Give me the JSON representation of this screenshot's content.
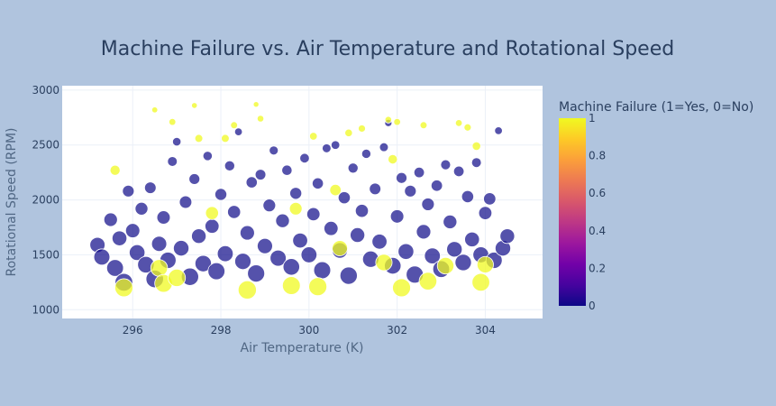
{
  "chart_data": {
    "type": "scatter",
    "title": "Machine Failure vs. Air Temperature and Rotational Speed",
    "xlabel": "Air Temperature (K)",
    "ylabel": "Rotational Speed (RPM)",
    "xlim": [
      294.4,
      305.3
    ],
    "ylim": [
      920,
      3040
    ],
    "x_ticks": [
      296,
      298,
      300,
      302,
      304
    ],
    "x_tick_labels": [
      "296",
      "298",
      "300",
      "302",
      "304"
    ],
    "y_ticks": [
      1000,
      1500,
      2000,
      2500,
      3000
    ],
    "y_tick_labels": [
      "1000",
      "1500",
      "2000",
      "2500",
      "3000"
    ],
    "grid": true,
    "colorbar": {
      "title": "Machine Failure (1=Yes, 0=No)",
      "ticks": [
        0,
        0.2,
        0.4,
        0.6,
        0.8,
        1
      ],
      "tick_labels": [
        "0",
        "0.2",
        "0.4",
        "0.6",
        "0.8",
        "1"
      ],
      "colorscale": [
        "#0d0887",
        "#46039f",
        "#7201a8",
        "#9c179e",
        "#bd3786",
        "#d8576b",
        "#ed7953",
        "#fb9f3a",
        "#fdca26",
        "#f0f921"
      ]
    },
    "series": [
      {
        "values_note": "color=failure",
        "points": [
          [
            295.2,
            1590,
            0
          ],
          [
            295.3,
            1480,
            0
          ],
          [
            295.5,
            1820,
            0
          ],
          [
            295.6,
            1380,
            0
          ],
          [
            295.7,
            1650,
            0
          ],
          [
            295.8,
            1250,
            0
          ],
          [
            295.9,
            2080,
            0
          ],
          [
            296.0,
            1720,
            0
          ],
          [
            296.1,
            1520,
            0
          ],
          [
            296.2,
            1920,
            0
          ],
          [
            296.3,
            1410,
            0
          ],
          [
            296.4,
            2110,
            0
          ],
          [
            296.5,
            1280,
            0
          ],
          [
            296.6,
            1600,
            0
          ],
          [
            296.7,
            1840,
            0
          ],
          [
            296.8,
            1450,
            0
          ],
          [
            296.9,
            2350,
            0
          ],
          [
            297.0,
            2530,
            0
          ],
          [
            297.1,
            1560,
            0
          ],
          [
            297.2,
            1980,
            0
          ],
          [
            297.3,
            1300,
            0
          ],
          [
            297.4,
            2190,
            0
          ],
          [
            297.5,
            1670,
            0
          ],
          [
            297.6,
            1420,
            0
          ],
          [
            297.7,
            2400,
            0
          ],
          [
            297.8,
            1760,
            0
          ],
          [
            297.9,
            1350,
            0
          ],
          [
            298.0,
            2050,
            0
          ],
          [
            298.1,
            1510,
            0
          ],
          [
            298.2,
            2310,
            0
          ],
          [
            298.3,
            1890,
            0
          ],
          [
            298.4,
            2620,
            0
          ],
          [
            298.5,
            1440,
            0
          ],
          [
            298.6,
            1700,
            0
          ],
          [
            298.7,
            2160,
            0
          ],
          [
            298.8,
            1330,
            0
          ],
          [
            298.9,
            2230,
            0
          ],
          [
            299.0,
            1580,
            0
          ],
          [
            299.1,
            1950,
            0
          ],
          [
            299.2,
            2450,
            0
          ],
          [
            299.3,
            1470,
            0
          ],
          [
            299.4,
            1810,
            0
          ],
          [
            299.5,
            2270,
            0
          ],
          [
            299.6,
            1390,
            0
          ],
          [
            299.7,
            2060,
            0
          ],
          [
            299.8,
            1630,
            0
          ],
          [
            299.9,
            2380,
            0
          ],
          [
            300.0,
            1500,
            0
          ],
          [
            300.1,
            1870,
            0
          ],
          [
            300.2,
            2150,
            0
          ],
          [
            300.3,
            1360,
            0
          ],
          [
            300.4,
            2470,
            0
          ],
          [
            300.5,
            1740,
            0
          ],
          [
            300.6,
            2500,
            0
          ],
          [
            300.7,
            1540,
            0
          ],
          [
            300.8,
            2020,
            0
          ],
          [
            300.9,
            1310,
            0
          ],
          [
            301.0,
            2290,
            0
          ],
          [
            301.1,
            1680,
            0
          ],
          [
            301.2,
            1900,
            0
          ],
          [
            301.3,
            2420,
            0
          ],
          [
            301.4,
            1460,
            0
          ],
          [
            301.5,
            2100,
            0
          ],
          [
            301.6,
            1620,
            0
          ],
          [
            301.7,
            2480,
            0
          ],
          [
            301.8,
            2700,
            0
          ],
          [
            301.9,
            1400,
            0
          ],
          [
            302.0,
            1850,
            0
          ],
          [
            302.1,
            2200,
            0
          ],
          [
            302.2,
            1530,
            0
          ],
          [
            302.3,
            2080,
            0
          ],
          [
            302.4,
            1320,
            0
          ],
          [
            302.5,
            2250,
            0
          ],
          [
            302.6,
            1710,
            0
          ],
          [
            302.7,
            1960,
            0
          ],
          [
            302.8,
            1490,
            0
          ],
          [
            302.9,
            2130,
            0
          ],
          [
            303.0,
            1370,
            0
          ],
          [
            303.1,
            2320,
            0
          ],
          [
            303.2,
            1800,
            0
          ],
          [
            303.3,
            1550,
            0
          ],
          [
            303.4,
            2260,
            0
          ],
          [
            303.5,
            1430,
            0
          ],
          [
            303.6,
            2030,
            0
          ],
          [
            303.7,
            1640,
            0
          ],
          [
            303.8,
            2340,
            0
          ],
          [
            303.9,
            1500,
            0
          ],
          [
            304.0,
            1880,
            0
          ],
          [
            304.1,
            2010,
            0
          ],
          [
            304.2,
            1450,
            0
          ],
          [
            304.3,
            2630,
            0
          ],
          [
            304.4,
            1560,
            0
          ],
          [
            304.5,
            1670,
            0
          ],
          [
            295.6,
            2270,
            1
          ],
          [
            295.8,
            1200,
            1
          ],
          [
            296.5,
            2820,
            1
          ],
          [
            296.6,
            1380,
            1
          ],
          [
            296.7,
            1240,
            1
          ],
          [
            296.9,
            2710,
            1
          ],
          [
            297.0,
            1290,
            1
          ],
          [
            297.4,
            2860,
            1
          ],
          [
            297.5,
            2560,
            1
          ],
          [
            297.8,
            1880,
            1
          ],
          [
            298.1,
            2560,
            1
          ],
          [
            298.3,
            2680,
            1
          ],
          [
            298.6,
            1180,
            1
          ],
          [
            298.8,
            2870,
            1
          ],
          [
            298.9,
            2740,
            1
          ],
          [
            299.6,
            1220,
            1
          ],
          [
            299.7,
            1920,
            1
          ],
          [
            300.1,
            2580,
            1
          ],
          [
            300.2,
            1210,
            1
          ],
          [
            300.6,
            2090,
            1
          ],
          [
            300.7,
            1560,
            1
          ],
          [
            300.9,
            2610,
            1
          ],
          [
            301.2,
            2650,
            1
          ],
          [
            301.7,
            1430,
            1
          ],
          [
            301.8,
            2730,
            1
          ],
          [
            301.9,
            2370,
            1
          ],
          [
            302.0,
            2710,
            1
          ],
          [
            302.1,
            1200,
            1
          ],
          [
            302.6,
            2680,
            1
          ],
          [
            302.7,
            1260,
            1
          ],
          [
            303.1,
            1400,
            1
          ],
          [
            303.4,
            2700,
            1
          ],
          [
            303.6,
            2660,
            1
          ],
          [
            303.8,
            2490,
            1
          ],
          [
            304.0,
            1410,
            1
          ],
          [
            303.9,
            1250,
            1
          ]
        ]
      }
    ]
  }
}
